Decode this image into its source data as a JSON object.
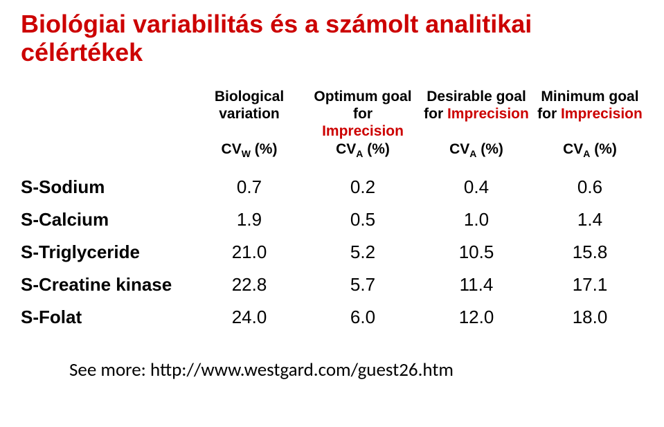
{
  "title": "Biológiai variabilitás és a számolt analitikai célértékek",
  "headers": {
    "col1": {
      "line1": "Biological",
      "line2": "variation"
    },
    "col2": {
      "line1": "Optimum goal for",
      "line2_imp": "Imprecision"
    },
    "col3": {
      "line1": "Desirable goal",
      "line2_pre": "for ",
      "line2_imp": "Imprecision"
    },
    "col4": {
      "line1": "Minimum goal",
      "line2_pre": "for ",
      "line2_imp": "Imprecision"
    }
  },
  "subhead": {
    "c1_pre": "CV",
    "c1_sub": "W",
    "c1_post": " (%)",
    "c2_pre": "CV",
    "c2_sub": "A",
    "c2_post": " (%)",
    "c3_pre": "CV",
    "c3_sub": "A",
    "c3_post": " (%)",
    "c4_pre": "CV",
    "c4_sub": "A",
    "c4_post": " (%)"
  },
  "rows": {
    "r0": {
      "label": "S-Sodium",
      "v1": "0.7",
      "v2": "0.2",
      "v3": "0.4",
      "v4": "0.6"
    },
    "r1": {
      "label": "S-Calcium",
      "v1": "1.9",
      "v2": "0.5",
      "v3": "1.0",
      "v4": "1.4"
    },
    "r2": {
      "label": "S-Triglyceride",
      "v1": "21.0",
      "v2": "5.2",
      "v3": "10.5",
      "v4": "15.8"
    },
    "r3": {
      "label": "S-Creatine kinase",
      "v1": "22.8",
      "v2": "5.7",
      "v3": "11.4",
      "v4": "17.1"
    },
    "r4": {
      "label": "S-Folat",
      "v1": "24.0",
      "v2": "6.0",
      "v3": "12.0",
      "v4": "18.0"
    }
  },
  "footer": "See more: http://www.westgard.com/guest26.htm",
  "colors": {
    "accent": "#cc0000",
    "text": "#000000",
    "background": "#ffffff"
  },
  "fontsizes": {
    "title": 36,
    "header": 21,
    "body": 26,
    "footer": 27
  }
}
